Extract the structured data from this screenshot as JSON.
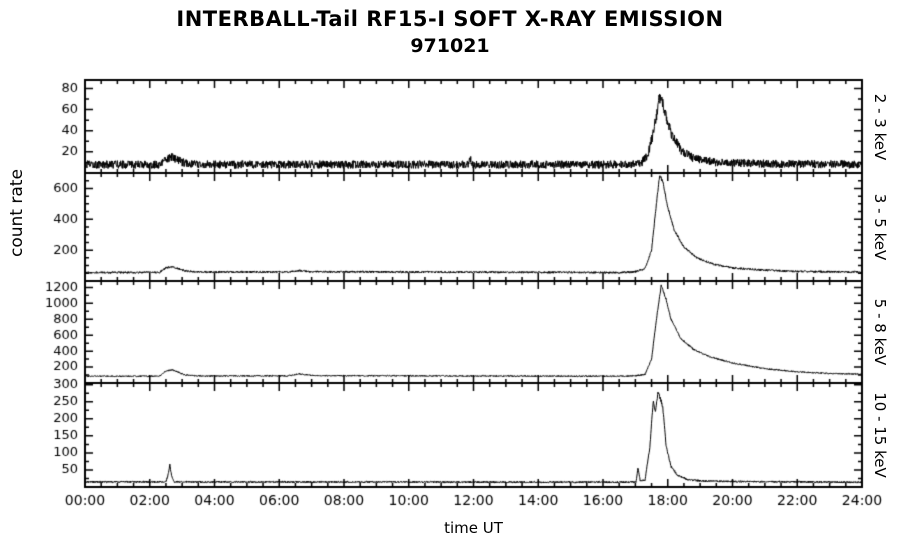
{
  "title": "INTERBALL-Tail RF15-I SOFT X-RAY EMISSION",
  "subtitle": "971021",
  "chart_data": {
    "type": "line",
    "title": "INTERBALL-Tail RF15-I SOFT X-RAY EMISSION",
    "subtitle": "971021",
    "xlabel": "time UT",
    "ylabel": "count rate",
    "x_range_hours": [
      0,
      24
    ],
    "x_major_tick_hours": 2,
    "x_minor_tick_hours": 0.5,
    "x_tick_labels": [
      "00:00",
      "02:00",
      "04:00",
      "06:00",
      "08:00",
      "10:00",
      "12:00",
      "14:00",
      "16:00",
      "18:00",
      "20:00",
      "22:00",
      "24:00"
    ],
    "grid": false,
    "line_color": "#000000",
    "background_color": "#ffffff",
    "legend": "none",
    "panels": [
      {
        "band": "2 - 3 keV",
        "ylim": [
          0,
          88
        ],
        "yticks": [
          20,
          40,
          60,
          80
        ],
        "y_minor_step": 10,
        "baseline_count_rate": 8,
        "noise_amplitude": 3.5,
        "noise_value_scale": 0.01,
        "features": [
          {
            "type": "bump",
            "time_ut": "02:40",
            "peak_value": 18
          },
          {
            "type": "flare",
            "time_ut": "17:45",
            "peak_value": 75
          }
        ],
        "profile_points": [
          [
            0,
            8
          ],
          [
            2.3,
            8
          ],
          [
            2.5,
            13
          ],
          [
            2.7,
            15
          ],
          [
            3.0,
            10
          ],
          [
            3.5,
            8
          ],
          [
            11.86,
            8
          ],
          [
            11.9,
            15
          ],
          [
            11.94,
            8
          ],
          [
            16.8,
            8
          ],
          [
            17.2,
            10
          ],
          [
            17.4,
            18
          ],
          [
            17.6,
            45
          ],
          [
            17.75,
            72
          ],
          [
            17.9,
            60
          ],
          [
            18.1,
            38
          ],
          [
            18.4,
            22
          ],
          [
            18.8,
            14
          ],
          [
            19.5,
            10
          ],
          [
            20.5,
            9
          ],
          [
            24,
            8
          ]
        ]
      },
      {
        "band": "3 - 5 keV",
        "ylim": [
          0,
          700
        ],
        "yticks": [
          200,
          400,
          600
        ],
        "y_minor_step": 50,
        "baseline_count_rate": 55,
        "noise_amplitude": 6,
        "noise_value_scale": 0.001,
        "features": [
          {
            "type": "bump",
            "time_ut": "02:40",
            "peak_value": 95
          },
          {
            "type": "bump",
            "time_ut": "06:40",
            "peak_value": 70
          },
          {
            "type": "flare",
            "time_ut": "17:45",
            "peak_value": 690
          }
        ],
        "profile_points": [
          [
            0,
            55
          ],
          [
            2.3,
            55
          ],
          [
            2.5,
            85
          ],
          [
            2.7,
            92
          ],
          [
            3.1,
            65
          ],
          [
            3.5,
            58
          ],
          [
            6.3,
            58
          ],
          [
            6.6,
            68
          ],
          [
            7.0,
            60
          ],
          [
            16.5,
            55
          ],
          [
            17.0,
            60
          ],
          [
            17.3,
            80
          ],
          [
            17.5,
            200
          ],
          [
            17.65,
            500
          ],
          [
            17.75,
            690
          ],
          [
            17.85,
            640
          ],
          [
            18.0,
            480
          ],
          [
            18.2,
            330
          ],
          [
            18.5,
            220
          ],
          [
            18.9,
            150
          ],
          [
            19.4,
            110
          ],
          [
            20.0,
            85
          ],
          [
            21.0,
            70
          ],
          [
            22.0,
            62
          ],
          [
            24,
            58
          ]
        ]
      },
      {
        "band": "5 - 8 keV",
        "ylim": [
          0,
          1280
        ],
        "yticks": [
          200,
          400,
          600,
          800,
          1000,
          1200
        ],
        "y_minor_step": 100,
        "baseline_count_rate": 85,
        "noise_amplitude": 8,
        "noise_value_scale": 0.0005,
        "features": [
          {
            "type": "bump",
            "time_ut": "02:40",
            "peak_value": 165
          },
          {
            "type": "bump",
            "time_ut": "06:40",
            "peak_value": 115
          },
          {
            "type": "flare",
            "time_ut": "17:48",
            "peak_value": 1230
          }
        ],
        "profile_points": [
          [
            0,
            85
          ],
          [
            2.3,
            85
          ],
          [
            2.5,
            150
          ],
          [
            2.7,
            165
          ],
          [
            3.1,
            100
          ],
          [
            3.5,
            88
          ],
          [
            6.3,
            90
          ],
          [
            6.6,
            115
          ],
          [
            7.1,
            92
          ],
          [
            16.5,
            85
          ],
          [
            17.0,
            90
          ],
          [
            17.3,
            110
          ],
          [
            17.5,
            300
          ],
          [
            17.65,
            800
          ],
          [
            17.8,
            1230
          ],
          [
            17.95,
            1050
          ],
          [
            18.1,
            800
          ],
          [
            18.4,
            560
          ],
          [
            18.8,
            420
          ],
          [
            19.3,
            330
          ],
          [
            20.0,
            250
          ],
          [
            21.0,
            180
          ],
          [
            22.0,
            140
          ],
          [
            23.0,
            120
          ],
          [
            24,
            110
          ]
        ]
      },
      {
        "band": "10 - 15 keV",
        "ylim": [
          0,
          305
        ],
        "yticks": [
          50,
          100,
          150,
          200,
          250,
          300
        ],
        "y_minor_step": 25,
        "baseline_count_rate": 15,
        "noise_amplitude": 2.5,
        "noise_value_scale": 0.004,
        "features": [
          {
            "type": "spike",
            "time_ut": "02:37",
            "peak_value": 65
          },
          {
            "type": "spike",
            "time_ut": "17:05",
            "peak_value": 55
          },
          {
            "type": "flare",
            "time_ut": "17:42",
            "peak_value": 280
          }
        ],
        "profile_points": [
          [
            0,
            15
          ],
          [
            2.5,
            15
          ],
          [
            2.58,
            40
          ],
          [
            2.62,
            65
          ],
          [
            2.68,
            30
          ],
          [
            2.75,
            15
          ],
          [
            16.8,
            14
          ],
          [
            17.02,
            15
          ],
          [
            17.08,
            55
          ],
          [
            17.15,
            18
          ],
          [
            17.3,
            20
          ],
          [
            17.45,
            120
          ],
          [
            17.55,
            250
          ],
          [
            17.62,
            220
          ],
          [
            17.7,
            278
          ],
          [
            17.78,
            258
          ],
          [
            17.85,
            230
          ],
          [
            17.95,
            120
          ],
          [
            18.1,
            60
          ],
          [
            18.3,
            35
          ],
          [
            18.6,
            22
          ],
          [
            19.0,
            18
          ],
          [
            20.0,
            16
          ],
          [
            24,
            14
          ]
        ]
      }
    ]
  }
}
